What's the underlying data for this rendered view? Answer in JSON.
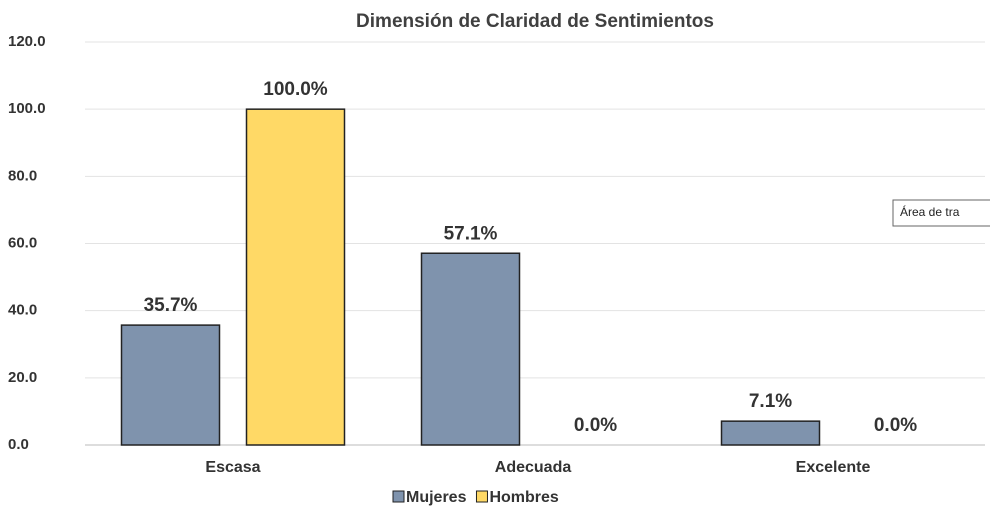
{
  "chart_data": {
    "type": "bar",
    "title": "Dimensión de Claridad de Sentimientos",
    "categories": [
      "Escasa",
      "Adecuada",
      "Excelente"
    ],
    "series": [
      {
        "name": "Mujeres",
        "color": "#7f93ad",
        "values": [
          35.7,
          57.1,
          7.1
        ],
        "value_labels": [
          "35.7%",
          "57.1%",
          "7.1%"
        ]
      },
      {
        "name": "Hombres",
        "color": "#ffd966",
        "values": [
          100.0,
          0.0,
          0.0
        ],
        "value_labels": [
          "100.0%",
          "0.0%",
          "0.0%"
        ]
      }
    ],
    "ylim": [
      0,
      120
    ],
    "yticks": [
      {
        "value": 0,
        "label": "0.0"
      },
      {
        "value": 20,
        "label": "20.0"
      },
      {
        "value": 40,
        "label": "40.0"
      },
      {
        "value": 60,
        "label": "60.0"
      },
      {
        "value": 80,
        "label": "80.0"
      },
      {
        "value": 100,
        "label": "100.0"
      },
      {
        "value": 120,
        "label": "120.0"
      }
    ],
    "grid": true,
    "legend": "bottom",
    "tooltip": "Área de tra"
  }
}
